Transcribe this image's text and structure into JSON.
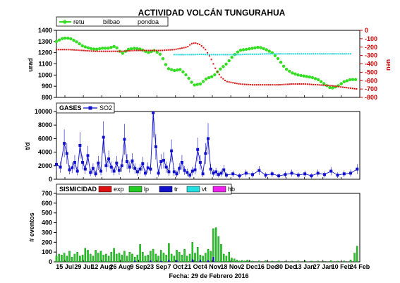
{
  "title": "ACTIVIDAD VOLCÁN TUNGURAHUA",
  "footer": "Fecha: 29 de Febrero 2016",
  "colors": {
    "retu": "#33dd22",
    "bilbao": "#dd1111",
    "pondoa": "#22d8d8",
    "so2": "#1111cc",
    "exp": "#dd1111",
    "lp": "#22cc22",
    "tr": "#1111cc",
    "vt": "#22e0e0",
    "hb": "#ee22ee",
    "right_axis": "#cc0000"
  },
  "x_ticks": [
    "15 Jul",
    "29 Jul",
    "12 Aug",
    "26 Aug",
    "9 Sep",
    "23 Sep",
    "7 Oct",
    "21 Oct",
    "4 Nov",
    "18 Nov",
    "2 Dec",
    "16 Dec",
    "30 Dec",
    "13 Jan",
    "27 Jan",
    "10 Feb",
    "24 Feb"
  ],
  "chart_data": [
    {
      "type": "line",
      "legend": [
        "retu",
        "bilbao",
        "pondoa"
      ],
      "ylabel": "urad",
      "ylim": [
        800,
        1400
      ],
      "yticks": [
        "800",
        "900",
        "1000",
        "1100",
        "1200",
        "1300",
        "1400"
      ],
      "y2label": "ueu",
      "y2lim": [
        -800,
        0
      ],
      "y2ticks": [
        "0",
        "-100",
        "-200",
        "-300",
        "-400",
        "-500",
        "-600",
        "-700",
        "-800"
      ],
      "series": [
        {
          "name": "retu",
          "axis": "left",
          "x": [
            0,
            5,
            10,
            15,
            20,
            25,
            30,
            35,
            40,
            45,
            50,
            55,
            60,
            65,
            70,
            75,
            80,
            85,
            90,
            95,
            100,
            105,
            110,
            115,
            120,
            125,
            130,
            135,
            140,
            145,
            150,
            155,
            160,
            165,
            170,
            175,
            180,
            185,
            190,
            195,
            200,
            205,
            210,
            215,
            220,
            225,
            230
          ],
          "y": [
            1300,
            1330,
            1330,
            1300,
            1260,
            1240,
            1230,
            1240,
            1240,
            1260,
            1190,
            1230,
            1240,
            1230,
            1200,
            1220,
            1180,
            1060,
            1040,
            1050,
            990,
            910,
            920,
            970,
            990,
            1050,
            1100,
            1170,
            1220,
            1230,
            1240,
            1250,
            1230,
            1200,
            1140,
            1060,
            1020,
            1000,
            990,
            980,
            960,
            920,
            880,
            900,
            940,
            960,
            960
          ]
        },
        {
          "name": "bilbao",
          "axis": "right",
          "x": [
            0,
            10,
            20,
            30,
            40,
            50,
            60,
            70,
            80,
            90,
            100,
            103,
            106,
            110,
            114,
            118,
            122,
            126,
            130,
            140,
            150,
            160,
            170,
            180,
            190,
            200,
            210,
            220,
            230
          ],
          "y": [
            -230,
            -230,
            -240,
            -250,
            -250,
            -250,
            -240,
            -240,
            -240,
            -230,
            -200,
            -160,
            -150,
            -170,
            -230,
            -330,
            -470,
            -560,
            -610,
            -640,
            -650,
            -650,
            -650,
            -640,
            -640,
            -650,
            -660,
            -680,
            -700
          ]
        },
        {
          "name": "pondoa",
          "axis": "right",
          "x": [
            90,
            95,
            100,
            105,
            110,
            115,
            120,
            125,
            130,
            135,
            140,
            145,
            150,
            155,
            160,
            165,
            170,
            175,
            180,
            185,
            190,
            195,
            200,
            205,
            210,
            215,
            220,
            225
          ],
          "y": [
            -290,
            -290,
            -290,
            -290,
            -285,
            -290,
            -290,
            -290,
            -290,
            -290,
            -290,
            -285,
            -285,
            -285,
            -280,
            -280,
            -280,
            -280,
            -280,
            -280,
            -280,
            -280,
            -280,
            -280,
            -280,
            -280,
            -280,
            -280
          ]
        }
      ]
    },
    {
      "type": "line",
      "legend_title": "GASES",
      "legend": [
        "SO2"
      ],
      "ylabel": "t/d",
      "ylim": [
        0,
        10000
      ],
      "yticks": [
        "0",
        "2000",
        "4000",
        "6000",
        "8000",
        "10000"
      ],
      "series": [
        {
          "name": "SO2",
          "x": [
            0,
            3,
            6,
            8,
            10,
            12,
            14,
            16,
            18,
            20,
            22,
            24,
            26,
            28,
            30,
            32,
            34,
            36,
            38,
            40,
            42,
            44,
            46,
            48,
            50,
            52,
            54,
            56,
            58,
            60,
            62,
            64,
            66,
            68,
            70,
            72,
            74,
            76,
            78,
            80,
            82,
            84,
            86,
            88,
            90,
            92,
            94,
            96,
            98,
            100,
            102,
            104,
            106,
            108,
            110,
            112,
            114,
            116,
            118,
            120,
            122,
            124,
            126,
            128,
            130,
            135,
            140,
            145,
            150,
            155,
            160,
            165,
            170,
            175,
            180,
            185,
            190,
            195,
            200,
            205,
            210,
            215,
            220,
            225,
            230
          ],
          "y": [
            2200,
            1800,
            5300,
            3800,
            1400,
            1700,
            2500,
            1200,
            5000,
            2500,
            1500,
            3500,
            1000,
            1600,
            800,
            2400,
            1200,
            6200,
            2000,
            3000,
            1800,
            1200,
            2400,
            1300,
            2000,
            5900,
            2600,
            1800,
            2700,
            1600,
            1100,
            1500,
            2300,
            900,
            1700,
            1500,
            9800,
            4800,
            900,
            2600,
            2800,
            1800,
            1100,
            4200,
            1100,
            800,
            1600,
            2500,
            1300,
            1000,
            600,
            1200,
            1400,
            4400,
            2500,
            800,
            3800,
            6000,
            1500,
            900,
            1100,
            700,
            900,
            1400,
            600,
            800,
            500,
            900,
            700,
            1300,
            600,
            800,
            500,
            700,
            900,
            600,
            800,
            500,
            900,
            700,
            1200,
            600,
            800,
            900,
            1500
          ]
        }
      ]
    },
    {
      "type": "bar",
      "legend_title": "SISMICIDAD",
      "legend": [
        "exp",
        "lp",
        "tr",
        "vt",
        "hb"
      ],
      "ylabel": "# eventos",
      "ylim": [
        0,
        700
      ],
      "yticks": [
        "0",
        "100",
        "200",
        "300",
        "400",
        "500",
        "600",
        "700"
      ],
      "series": [
        {
          "name": "lp",
          "x": [
            0,
            2,
            4,
            6,
            8,
            10,
            12,
            14,
            16,
            18,
            20,
            22,
            24,
            26,
            28,
            30,
            32,
            34,
            36,
            38,
            40,
            42,
            44,
            46,
            48,
            50,
            52,
            54,
            56,
            58,
            60,
            62,
            64,
            66,
            68,
            70,
            72,
            74,
            76,
            78,
            80,
            82,
            84,
            86,
            88,
            90,
            92,
            94,
            96,
            98,
            100,
            102,
            104,
            106,
            108,
            110,
            112,
            114,
            116,
            118,
            120,
            122,
            124,
            126,
            128,
            130,
            132,
            134,
            136,
            138,
            140,
            142,
            144,
            146,
            148,
            150,
            155,
            160,
            165,
            170,
            175,
            180,
            185,
            190,
            195,
            200,
            205,
            210,
            215,
            220,
            225,
            228,
            230
          ],
          "y": [
            60,
            80,
            70,
            90,
            60,
            110,
            50,
            80,
            100,
            60,
            70,
            140,
            120,
            80,
            60,
            120,
            90,
            110,
            70,
            80,
            60,
            100,
            140,
            80,
            90,
            70,
            110,
            60,
            100,
            80,
            50,
            70,
            180,
            100,
            60,
            70,
            110,
            130,
            80,
            60,
            120,
            90,
            70,
            190,
            80,
            60,
            120,
            100,
            70,
            130,
            60,
            80,
            200,
            90,
            150,
            70,
            60,
            90,
            130,
            110,
            340,
            350,
            260,
            180,
            80,
            60,
            100,
            40,
            30,
            20,
            10,
            15,
            10,
            20,
            10,
            8,
            10,
            12,
            8,
            10,
            6,
            8,
            10,
            12,
            8,
            10,
            6,
            12,
            8,
            10,
            20,
            90,
            160
          ]
        },
        {
          "name": "tr",
          "x": [
            60,
            72,
            80,
            86,
            92,
            104,
            110,
            116,
            120
          ],
          "y": [
            12,
            15,
            10,
            20,
            15,
            25,
            20,
            15,
            50
          ]
        }
      ]
    }
  ]
}
